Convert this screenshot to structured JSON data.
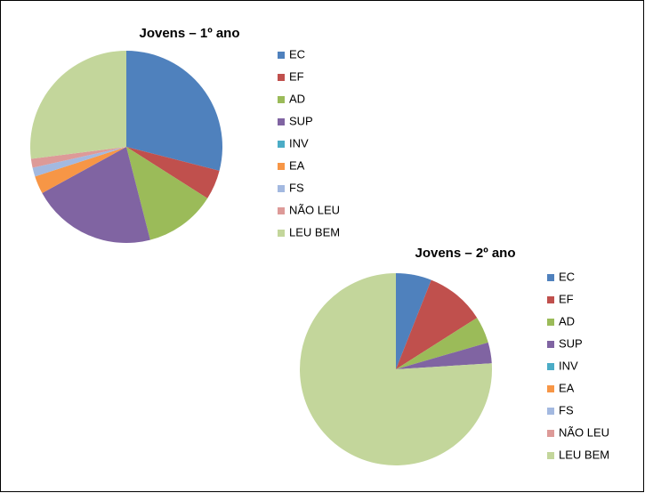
{
  "chart_data": [
    {
      "type": "pie",
      "title": "Jovens – 1º ano",
      "categories": [
        "EC",
        "EF",
        "AD",
        "SUP",
        "INV",
        "EA",
        "FS",
        "NÃO LEU",
        "LEU BEM"
      ],
      "values": [
        29,
        5,
        12,
        21,
        0,
        3,
        1.5,
        1.5,
        27
      ],
      "colors": [
        "#4f81bd",
        "#c0504d",
        "#9bbb59",
        "#8064a2",
        "#4bacc6",
        "#f79646",
        "#a3b9e0",
        "#dd9a98",
        "#c3d69b"
      ],
      "legend": "right"
    },
    {
      "type": "pie",
      "title": "Jovens – 2º ano",
      "categories": [
        "EC",
        "EF",
        "AD",
        "SUP",
        "INV",
        "EA",
        "FS",
        "NÃO LEU",
        "LEU BEM"
      ],
      "values": [
        6,
        10,
        4.5,
        3.5,
        0,
        0,
        0,
        0,
        76
      ],
      "colors": [
        "#4f81bd",
        "#c0504d",
        "#9bbb59",
        "#8064a2",
        "#4bacc6",
        "#f79646",
        "#a3b9e0",
        "#dd9a98",
        "#c3d69b"
      ],
      "legend": "right"
    }
  ]
}
